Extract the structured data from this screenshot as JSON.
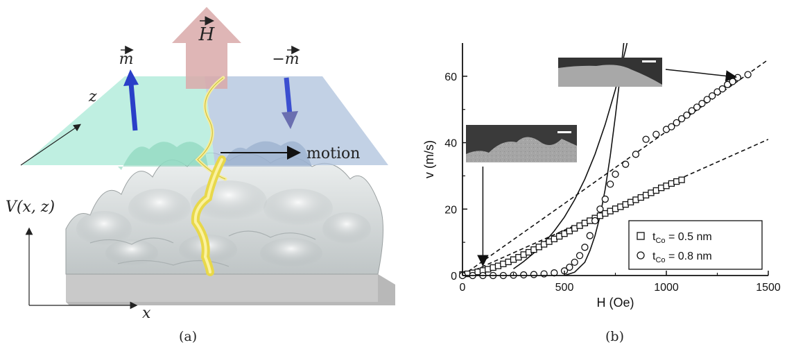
{
  "figure": {
    "panel_a_label": "(a)",
    "panel_b_label": "(b)"
  },
  "diagram": {
    "field_label": "H",
    "m_label": "m",
    "minus_m_label": "−m",
    "axis_z": "z",
    "axis_x": "x",
    "potential_label": "V(x, z)",
    "motion_label": "motion",
    "colors": {
      "up_domain": "#a9ead7",
      "down_domain": "#aec2dc",
      "surface": "#d6dbdc",
      "wall": "#f2e35a",
      "field_arrow": "#d9a9a9",
      "m_arrow": "#2a3fc8"
    }
  },
  "chart_data": {
    "type": "scatter",
    "xlabel": "H (Oe)",
    "ylabel": "v (m/s)",
    "xlim": [
      0,
      1500
    ],
    "ylim": [
      0,
      70
    ],
    "xticks": [
      0,
      500,
      1000,
      1500
    ],
    "yticks": [
      0,
      20,
      40,
      60
    ],
    "grid": false,
    "legend_position": "bottom-right",
    "series": [
      {
        "name": "t_Co = 0.5 nm",
        "legend_main": "t",
        "legend_sub": "Co",
        "legend_rest": " = 0.5 nm",
        "marker": "square",
        "x": [
          0,
          25,
          50,
          75,
          100,
          125,
          150,
          175,
          200,
          225,
          250,
          275,
          300,
          325,
          350,
          375,
          400,
          425,
          450,
          475,
          500,
          525,
          550,
          575,
          600,
          625,
          650,
          675,
          700,
          725,
          750,
          775,
          800,
          825,
          850,
          875,
          900,
          925,
          950,
          975,
          1000,
          1025,
          1050,
          1075
        ],
        "y": [
          0.3,
          0.5,
          0.8,
          1.1,
          1.5,
          1.9,
          2.4,
          2.9,
          3.5,
          4.1,
          4.8,
          5.5,
          6.3,
          7.0,
          7.8,
          8.6,
          9.4,
          10.2,
          11.0,
          11.8,
          12.6,
          13.4,
          14.2,
          15.0,
          15.8,
          16.5,
          17.3,
          18.0,
          18.7,
          19.4,
          20.1,
          20.7,
          21.4,
          22.1,
          22.8,
          23.5,
          24.2,
          24.9,
          25.6,
          26.4,
          27.0,
          27.7,
          28.3,
          28.8
        ]
      },
      {
        "name": "t_Co = 0.8 nm",
        "legend_main": "t",
        "legend_sub": "Co",
        "legend_rest": " = 0.8 nm",
        "marker": "circle",
        "x": [
          0,
          50,
          100,
          150,
          200,
          250,
          300,
          350,
          400,
          450,
          500,
          525,
          550,
          575,
          600,
          625,
          650,
          675,
          700,
          725,
          750,
          800,
          850,
          900,
          950,
          1000,
          1025,
          1050,
          1075,
          1100,
          1125,
          1150,
          1175,
          1200,
          1225,
          1250,
          1275,
          1300,
          1325,
          1350,
          1400
        ],
        "y": [
          0,
          0,
          0,
          0,
          0,
          0.1,
          0.2,
          0.3,
          0.5,
          0.8,
          1.4,
          2.5,
          4.0,
          6.0,
          8.5,
          12.0,
          16.5,
          20.0,
          23.0,
          27.5,
          30.5,
          33.5,
          36.5,
          41.0,
          42.5,
          44.0,
          44.8,
          46.0,
          47.2,
          48.3,
          49.6,
          50.7,
          51.8,
          53.0,
          54.1,
          55.3,
          56.2,
          57.5,
          58.4,
          59.6,
          60.5
        ]
      }
    ],
    "fit_lines": [
      {
        "style": "dashed",
        "x": [
          0,
          1500
        ],
        "y": [
          0,
          65
        ]
      },
      {
        "style": "dashed",
        "x": [
          0,
          1500
        ],
        "y": [
          0,
          41
        ]
      },
      {
        "style": "solid",
        "x": [
          250,
          300,
          350,
          400,
          450,
          500,
          550,
          600,
          650,
          700,
          750,
          800,
          850
        ],
        "y": [
          2.0,
          4.2,
          6.8,
          9.8,
          13.4,
          17.6,
          22.8,
          29.0,
          36.5,
          45.5,
          56.0,
          68.0,
          82.0
        ]
      },
      {
        "style": "solid",
        "x": [
          500,
          550,
          600,
          625,
          650,
          675,
          700,
          725,
          750,
          775,
          800
        ],
        "y": [
          0,
          1.0,
          4.0,
          7.5,
          12.0,
          18.0,
          26.0,
          36.0,
          48.0,
          61.0,
          75.0
        ]
      }
    ],
    "insets": [
      {
        "anchor_H": 100,
        "anchor_v": 0
      },
      {
        "anchor_H": 1310,
        "anchor_v": 60
      }
    ]
  }
}
